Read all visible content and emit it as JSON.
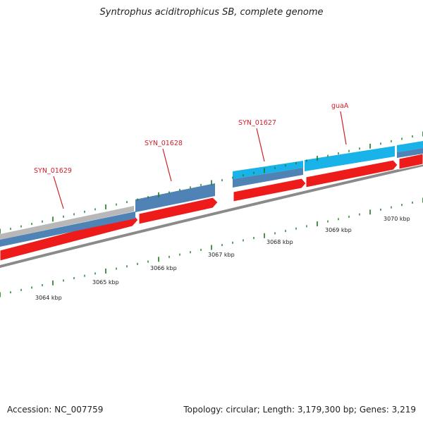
{
  "title": "Syntrophus aciditrophicus SB, complete genome",
  "footer": {
    "accession": "Accession: NC_007759",
    "summary": "Topology: circular; Length: 3,179,300 bp; Genes: 3,219"
  },
  "colors": {
    "cds_forward": "#ee1b1b",
    "gene_steelblue": "#4f82b5",
    "gene_lightblue": "#19b3ea",
    "gene_gray": "#b8b8b8",
    "backbone": "#8a8a8a",
    "tick": "#1d7a1d",
    "label": "#d0202a"
  },
  "scale": {
    "ticks_kbp": [
      {
        "value": 3064,
        "label": "3064 kbp"
      },
      {
        "value": 3065,
        "label": "3065 kbp"
      },
      {
        "value": 3066,
        "label": "3066 kbp"
      },
      {
        "value": 3067,
        "label": "3067 kbp"
      },
      {
        "value": 3068,
        "label": "3068 kbp"
      },
      {
        "value": 3069,
        "label": "3069 kbp"
      },
      {
        "value": 3070,
        "label": "3070 kbp"
      }
    ]
  },
  "genes": [
    {
      "name": "SYN_01629"
    },
    {
      "name": "SYN_01628"
    },
    {
      "name": "SYN_01627"
    },
    {
      "name": "guaA"
    }
  ]
}
